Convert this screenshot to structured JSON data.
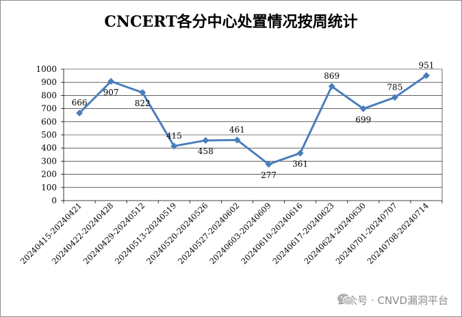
{
  "chart_data": {
    "type": "line",
    "title": "CNCERT各分中心处置情况按周统计",
    "categories": [
      "20240415-20240421",
      "20240422-20240428",
      "20240429-20240512",
      "20240513-20240519",
      "20240520-20240526",
      "20240527-20240602",
      "20240603-20240609",
      "20240610-20240616",
      "20240617-20240623",
      "20240624-20240630",
      "20240701-20240707",
      "20240708-20240714"
    ],
    "series": [
      {
        "values": [
          666,
          907,
          822,
          415,
          458,
          461,
          277,
          361,
          869,
          699,
          785,
          951
        ]
      }
    ],
    "ylim": [
      0,
      1000
    ],
    "yticks": [
      0,
      100,
      200,
      300,
      400,
      500,
      600,
      700,
      800,
      900,
      1000
    ],
    "grid": true,
    "legend": "none",
    "line_color": "#4a7ebb",
    "xlabel": "",
    "ylabel": ""
  },
  "watermark": {
    "icon": "wechat-icon",
    "text": "公众号 · CNVD漏洞平台"
  }
}
